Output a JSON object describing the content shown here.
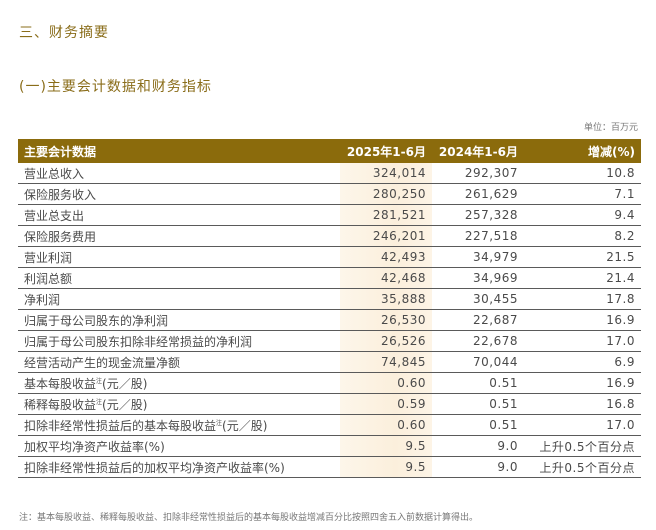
{
  "section_title": "三、财务摘要",
  "sub_title": "(一)主要会计数据和财务指标",
  "unit": "单位：百万元",
  "table": {
    "headers": [
      "主要会计数据",
      "2025年1-6月",
      "2024年1-6月",
      "增减(%)"
    ],
    "rows": [
      {
        "label": "营业总收入",
        "note": "",
        "suffix": "",
        "v2025": "324,014",
        "v2024": "292,307",
        "change": "10.8"
      },
      {
        "label": "保险服务收入",
        "note": "",
        "suffix": "",
        "v2025": "280,250",
        "v2024": "261,629",
        "change": "7.1"
      },
      {
        "label": "营业总支出",
        "note": "",
        "suffix": "",
        "v2025": "281,521",
        "v2024": "257,328",
        "change": "9.4"
      },
      {
        "label": "保险服务费用",
        "note": "",
        "suffix": "",
        "v2025": "246,201",
        "v2024": "227,518",
        "change": "8.2"
      },
      {
        "label": "营业利润",
        "note": "",
        "suffix": "",
        "v2025": "42,493",
        "v2024": "34,979",
        "change": "21.5"
      },
      {
        "label": "利润总额",
        "note": "",
        "suffix": "",
        "v2025": "42,468",
        "v2024": "34,969",
        "change": "21.4"
      },
      {
        "label": "净利润",
        "note": "",
        "suffix": "",
        "v2025": "35,888",
        "v2024": "30,455",
        "change": "17.8"
      },
      {
        "label": "归属于母公司股东的净利润",
        "note": "",
        "suffix": "",
        "v2025": "26,530",
        "v2024": "22,687",
        "change": "16.9"
      },
      {
        "label": "归属于母公司股东扣除非经常损益的净利润",
        "note": "",
        "suffix": "",
        "v2025": "26,526",
        "v2024": "22,678",
        "change": "17.0"
      },
      {
        "label": "经营活动产生的现金流量净额",
        "note": "",
        "suffix": "",
        "v2025": "74,845",
        "v2024": "70,044",
        "change": "6.9"
      },
      {
        "label": "基本每股收益",
        "note": "注",
        "suffix": "(元／股)",
        "v2025": "0.60",
        "v2024": "0.51",
        "change": "16.9"
      },
      {
        "label": "稀释每股收益",
        "note": "注",
        "suffix": "(元／股)",
        "v2025": "0.59",
        "v2024": "0.51",
        "change": "16.8"
      },
      {
        "label": "扣除非经常性损益后的基本每股收益",
        "note": "注",
        "suffix": "(元／股)",
        "v2025": "0.60",
        "v2024": "0.51",
        "change": "17.0"
      },
      {
        "label": "加权平均净资产收益率(%)",
        "note": "",
        "suffix": "",
        "v2025": "9.5",
        "v2024": "9.0",
        "change": "上升0.5个百分点"
      },
      {
        "label": "扣除非经常性损益后的加权平均净资产收益率(%)",
        "note": "",
        "suffix": "",
        "v2025": "9.5",
        "v2024": "9.0",
        "change": "上升0.5个百分点"
      }
    ]
  },
  "footnote": "注：基本每股收益、稀释每股收益、扣除非经常性损益后的基本每股收益增减百分比按照四舍五入前数据计算得出。",
  "colors": {
    "header_bg": "#8b6b0c",
    "title": "#8a6d1a",
    "highlight_column": "#fbefdc"
  }
}
